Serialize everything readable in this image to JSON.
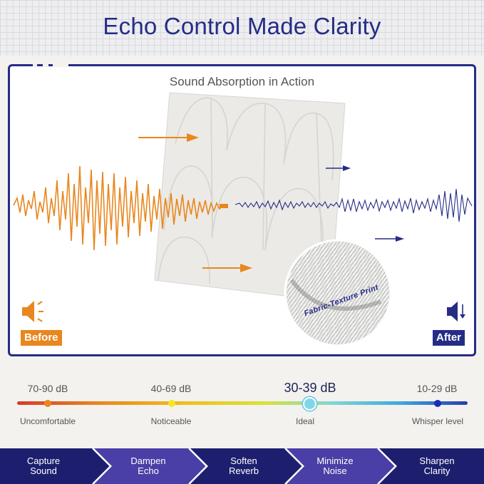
{
  "header": {
    "title": "Echo Control Made Clarity"
  },
  "demo": {
    "title": "Sound Absorption in Action",
    "before_label": "Before",
    "after_label": "After",
    "fabric_label": "Fabric-Texture Print",
    "icons": [
      "speaker-loud-icon",
      "speaker-low-icon",
      "arrow-right-icon"
    ],
    "colors": {
      "before": "#e8871e",
      "after": "#252c86"
    }
  },
  "scale": {
    "levels": [
      {
        "db": "70-90 dB",
        "label": "Uncomfortable",
        "color": "#e8871e"
      },
      {
        "db": "40-69 dB",
        "label": "Noticeable",
        "color": "#f5e62a"
      },
      {
        "db": "30-39 dB",
        "label": "Ideal",
        "color": "#7fd6e8"
      },
      {
        "db": "10-29 dB",
        "label": "Whisper level",
        "color": "#1d2bb5"
      }
    ]
  },
  "steps": [
    {
      "line1": "Capture",
      "line2": "Sound"
    },
    {
      "line1": "Dampen",
      "line2": "Echo"
    },
    {
      "line1": "Soften",
      "line2": "Reverb"
    },
    {
      "line1": "Minimize",
      "line2": "Noise"
    },
    {
      "line1": "Sharpen",
      "line2": "Clarity"
    }
  ],
  "brand": {
    "navy": "#252c86",
    "orange": "#e8871e"
  }
}
